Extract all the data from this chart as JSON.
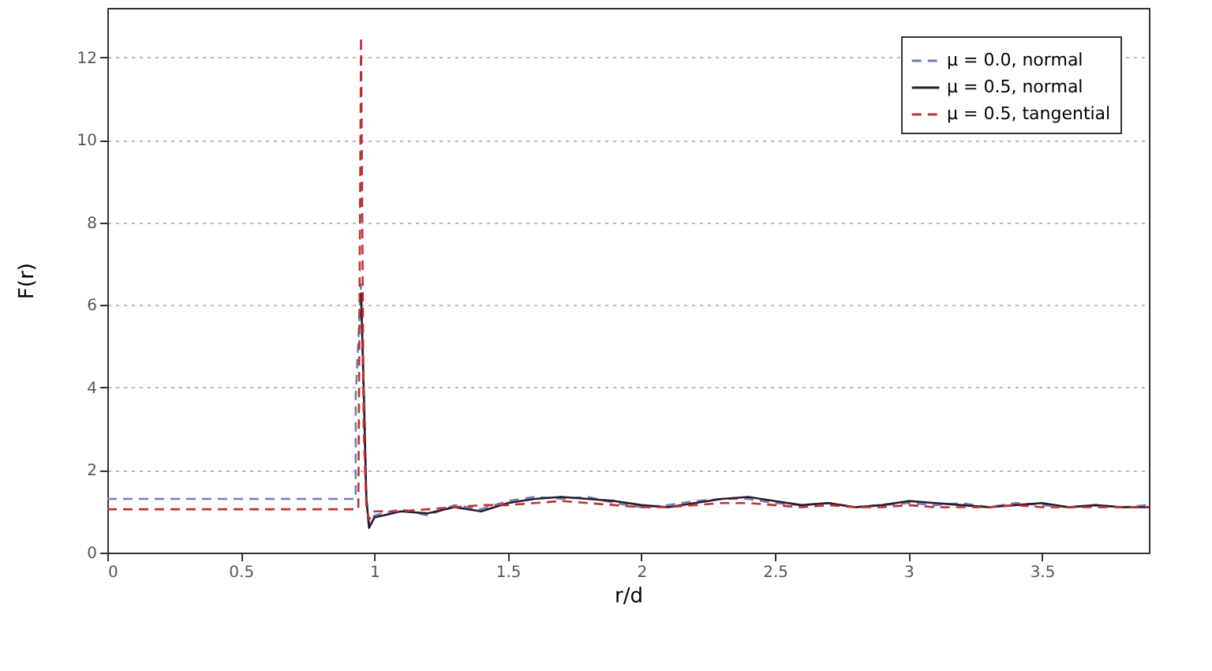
{
  "chart_data": {
    "type": "line",
    "xlabel": "r/d",
    "ylabel": "F(r)",
    "xlim": [
      0,
      3.9
    ],
    "xticks": [
      0,
      0.5,
      1,
      1.5,
      2,
      2.5,
      3,
      3.5
    ],
    "ylim": [
      0,
      13.2
    ],
    "yticks": [
      0,
      2,
      4,
      6,
      8,
      10,
      12
    ],
    "grid": "y",
    "legend": "top right",
    "marker": "none",
    "series": [
      {
        "name": "μ = 0.0, normal",
        "color": "#7080b0",
        "line_style": "dashed",
        "x": [
          0,
          0.93,
          0.93,
          0.95,
          0.96,
          0.97,
          0.98,
          1.0,
          1.1,
          1.2,
          1.3,
          1.4,
          1.5,
          1.6,
          1.7,
          1.8,
          1.9,
          2.0,
          2.1,
          2.2,
          2.3,
          2.4,
          2.5,
          2.6,
          2.7,
          2.8,
          2.9,
          3.0,
          3.1,
          3.2,
          3.3,
          3.4,
          3.5,
          3.6,
          3.7,
          3.8,
          3.9
        ],
        "values": [
          1.3,
          1.3,
          3.8,
          6.5,
          3.8,
          1.3,
          0.7,
          0.9,
          1.05,
          0.9,
          1.15,
          1.05,
          1.25,
          1.35,
          1.3,
          1.35,
          1.2,
          1.1,
          1.15,
          1.25,
          1.3,
          1.3,
          1.2,
          1.15,
          1.2,
          1.1,
          1.15,
          1.2,
          1.15,
          1.2,
          1.1,
          1.2,
          1.15,
          1.1,
          1.15,
          1.1,
          1.15
        ]
      },
      {
        "name": "μ = 0.5, normal",
        "color": "#2a1a2e",
        "line_style": "solid",
        "x": [
          0.95,
          0.96,
          0.97,
          0.98,
          1.0,
          1.1,
          1.2,
          1.3,
          1.4,
          1.5,
          1.6,
          1.7,
          1.8,
          1.9,
          2.0,
          2.1,
          2.2,
          2.3,
          2.4,
          2.5,
          2.6,
          2.7,
          2.8,
          2.9,
          3.0,
          3.1,
          3.2,
          3.3,
          3.4,
          3.5,
          3.6,
          3.7,
          3.8,
          3.9
        ],
        "values": [
          6.3,
          4.0,
          1.3,
          0.6,
          0.85,
          1.0,
          0.95,
          1.1,
          1.0,
          1.2,
          1.3,
          1.35,
          1.3,
          1.25,
          1.15,
          1.1,
          1.2,
          1.3,
          1.35,
          1.25,
          1.15,
          1.2,
          1.1,
          1.15,
          1.25,
          1.2,
          1.15,
          1.1,
          1.15,
          1.2,
          1.1,
          1.15,
          1.1,
          1.1
        ]
      },
      {
        "name": "μ = 0.5, tangential",
        "color": "#c03030",
        "line_style": "dashed",
        "x": [
          0,
          0.94,
          0.95,
          0.96,
          0.97,
          0.98,
          1.0,
          1.1,
          1.2,
          1.3,
          1.4,
          1.5,
          1.6,
          1.7,
          1.8,
          1.9,
          2.0,
          2.1,
          2.2,
          2.3,
          2.4,
          2.5,
          2.6,
          2.7,
          2.8,
          2.9,
          3.0,
          3.1,
          3.2,
          3.3,
          3.4,
          3.5,
          3.6,
          3.7,
          3.8,
          3.9
        ],
        "values": [
          1.05,
          1.05,
          12.5,
          3.0,
          1.1,
          0.8,
          1.0,
          1.0,
          1.05,
          1.1,
          1.15,
          1.15,
          1.2,
          1.25,
          1.2,
          1.15,
          1.1,
          1.1,
          1.15,
          1.2,
          1.2,
          1.15,
          1.1,
          1.15,
          1.1,
          1.1,
          1.15,
          1.1,
          1.1,
          1.1,
          1.15,
          1.1,
          1.1,
          1.1,
          1.1,
          1.1
        ]
      }
    ]
  }
}
